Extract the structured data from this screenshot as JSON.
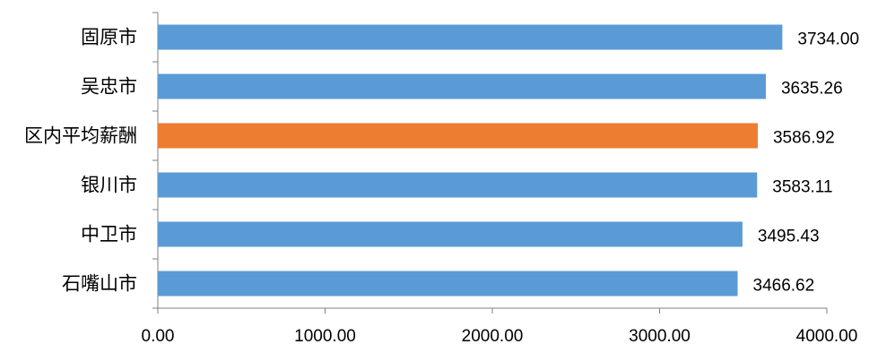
{
  "chart_data": {
    "type": "bar",
    "orientation": "horizontal",
    "categories": [
      "固原市",
      "吴忠市",
      "区内平均薪酬",
      "银川市",
      "中卫市",
      "石嘴山市"
    ],
    "values": [
      3734.0,
      3635.26,
      3586.92,
      3583.11,
      3495.43,
      3466.62
    ],
    "value_labels": [
      "3734.00",
      "3635.26",
      "3586.92",
      "3583.11",
      "3495.43",
      "3466.62"
    ],
    "bar_colors": [
      "#5B9BD5",
      "#5B9BD5",
      "#ED7D31",
      "#5B9BD5",
      "#5B9BD5",
      "#5B9BD5"
    ],
    "xlim": [
      0,
      4000
    ],
    "x_ticks": [
      0,
      1000,
      2000,
      3000,
      4000
    ],
    "x_tick_labels": [
      "0.00",
      "1000.00",
      "2000.00",
      "3000.00",
      "4000.00"
    ],
    "grid": false,
    "legend": "none"
  }
}
